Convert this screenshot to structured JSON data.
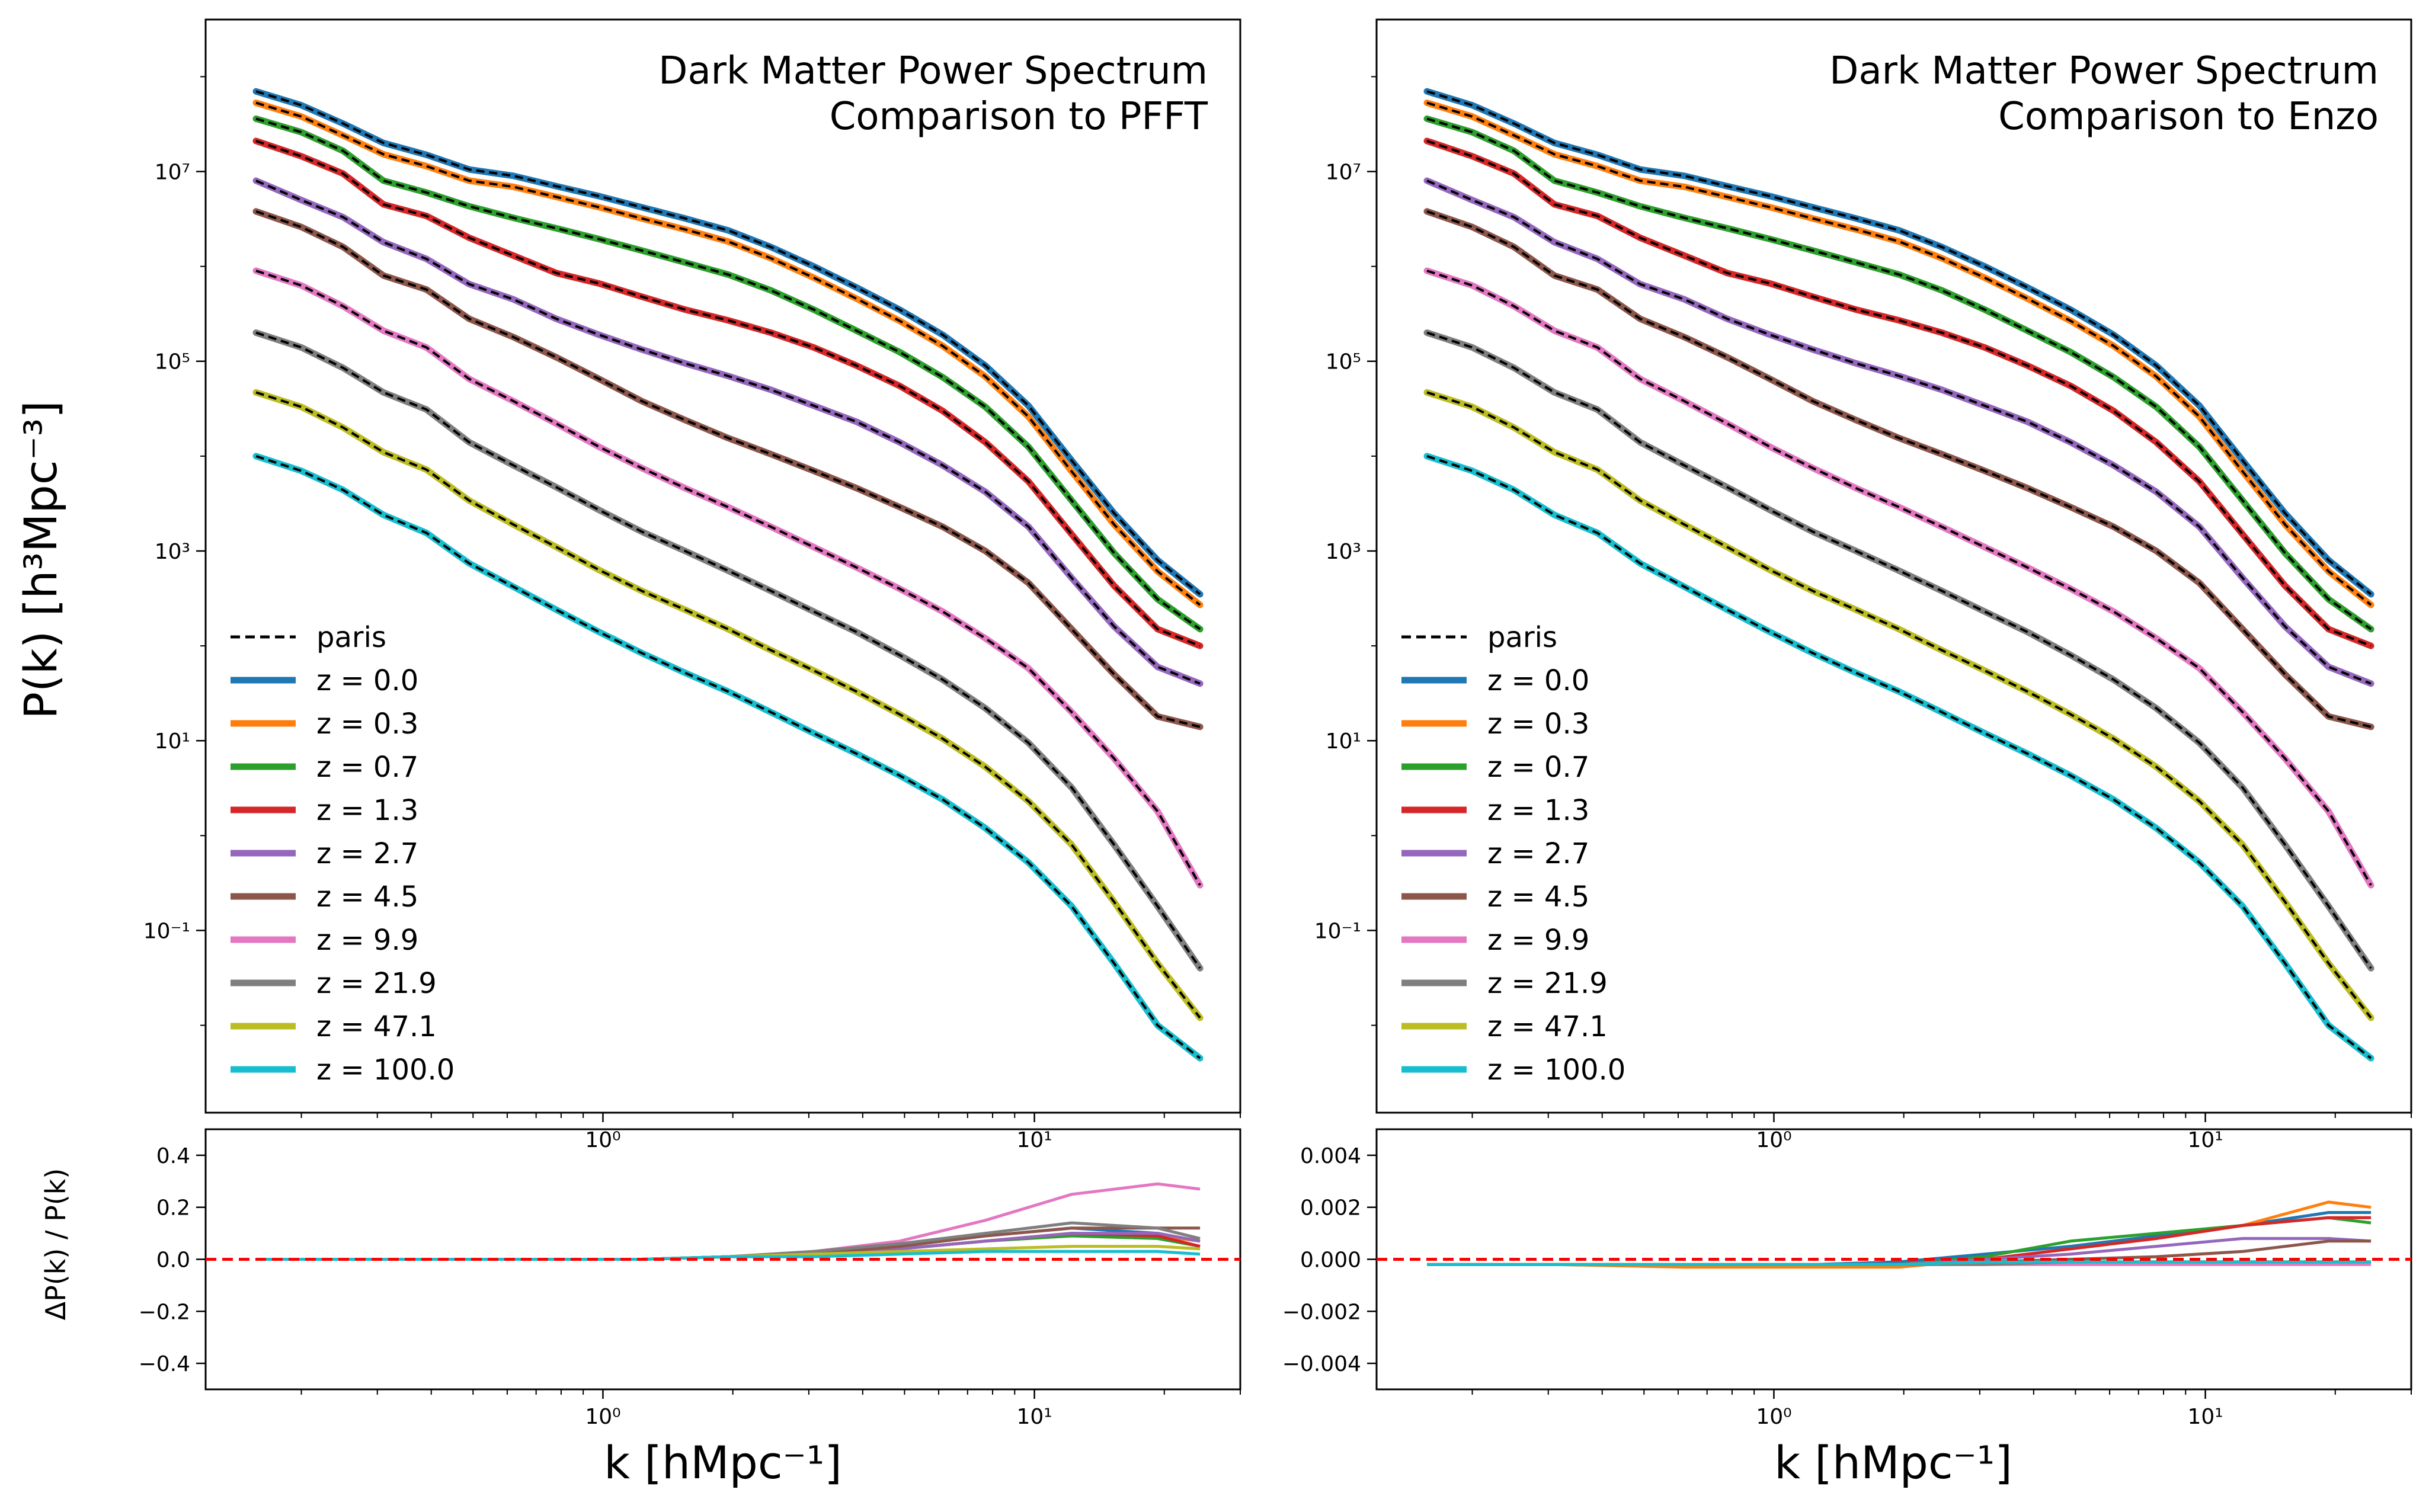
{
  "figure": {
    "ylabel_top": "P(k)   [h³Mpc⁻³]",
    "ylabel_bottom": "ΔP(k) / P(k)",
    "xlabel": "k  [hMpc⁻¹]"
  },
  "chart_data": [
    {
      "type": "line",
      "panel": "top-left",
      "title": "Dark Matter Power Spectrum",
      "subtitle": "Comparison to PFFT",
      "xscale": "log",
      "yscale": "log",
      "xlim": [
        0.12,
        30
      ],
      "ylim": [
        0.0012,
        400000000
      ],
      "ylabel": "P(k)   [h³Mpc⁻³]",
      "yticks": [
        {
          "value": 0.1,
          "label": "10⁻¹"
        },
        {
          "value": 10,
          "label": "10¹"
        },
        {
          "value": 1000,
          "label": "10³"
        },
        {
          "value": 100000,
          "label": "10⁵"
        },
        {
          "value": 10000000,
          "label": "10⁷"
        }
      ],
      "xticks": [
        {
          "value": 1,
          "label": "10⁰"
        },
        {
          "value": 10,
          "label": "10¹"
        }
      ],
      "legend_position": "lower-left",
      "reference": {
        "name": "paris",
        "style": "dashed",
        "color": "#000000"
      },
      "x": [
        0.157,
        0.2,
        0.25,
        0.31,
        0.39,
        0.49,
        0.62,
        0.78,
        0.98,
        1.23,
        1.55,
        1.95,
        2.45,
        3.08,
        3.87,
        4.87,
        6.13,
        7.7,
        9.69,
        12.2,
        15.3,
        19.3,
        24.2
      ],
      "series": [
        {
          "name": "z = 0.0",
          "color": "#1f77b4",
          "values": [
            70000000,
            50000000,
            32000000,
            20000000,
            15000000,
            10500000,
            9000000,
            7000000,
            5500000,
            4200000,
            3200000,
            2400000,
            1600000,
            1000000,
            600000,
            350000,
            190000,
            90000,
            34000,
            9000,
            2500,
            800,
            350
          ]
        },
        {
          "name": "z = 0.3",
          "color": "#ff7f0e",
          "values": [
            53000000,
            38000000,
            24000000,
            15200000,
            11400000,
            8000000,
            6900000,
            5400000,
            4200000,
            3200000,
            2450000,
            1830000,
            1220000,
            760000,
            457000,
            267000,
            145000,
            69000,
            26000,
            6900,
            1900,
            610,
            270
          ]
        },
        {
          "name": "z = 0.7",
          "color": "#2ca02c",
          "values": [
            36000000,
            26000000,
            16500000,
            8000000,
            6000000,
            4300000,
            3250000,
            2520000,
            1940000,
            1470000,
            1100000,
            820000,
            560000,
            350000,
            210000,
            125000,
            68000,
            33000,
            12500,
            3400,
            950,
            310,
            150
          ]
        },
        {
          "name": "z = 1.3",
          "color": "#d62728",
          "values": [
            21000000,
            14500000,
            9500000,
            4500000,
            3400000,
            2000000,
            1300000,
            850000,
            660000,
            480000,
            350000,
            270000,
            200000,
            140000,
            90000,
            55000,
            30000,
            14000,
            5400,
            1500,
            430,
            150,
            100
          ]
        },
        {
          "name": "z = 2.7",
          "color": "#9467bd",
          "values": [
            8000000,
            5000000,
            3300000,
            1800000,
            1200000,
            650000,
            450000,
            280000,
            190000,
            133000,
            95000,
            70000,
            50000,
            34000,
            23000,
            14000,
            8000,
            4200,
            1800,
            520,
            160,
            60,
            40
          ]
        },
        {
          "name": "z = 4.5",
          "color": "#8c564b",
          "values": [
            3800000,
            2600000,
            1600000,
            800000,
            570000,
            280000,
            180000,
            110000,
            65000,
            38000,
            24000,
            15500,
            10500,
            7000,
            4600,
            2900,
            1800,
            1000,
            460,
            150,
            50,
            18,
            14
          ]
        },
        {
          "name": "z = 9.9",
          "color": "#e377c2",
          "values": [
            900000,
            630000,
            380000,
            210000,
            140000,
            65000,
            38000,
            22000,
            12500,
            7500,
            4600,
            2900,
            1800,
            1100,
            670,
            400,
            230,
            120,
            58,
            20,
            6.5,
            1.8,
            0.3
          ]
        },
        {
          "name": "z = 21.9",
          "color": "#7f7f7f",
          "values": [
            200000,
            140000,
            85000,
            47000,
            31000,
            14000,
            8000,
            4700,
            2700,
            1600,
            1000,
            620,
            380,
            230,
            140,
            80,
            44,
            22,
            9.5,
            3.2,
            0.8,
            0.18,
            0.04
          ]
        },
        {
          "name": "z = 47.1",
          "color": "#bcbd22",
          "values": [
            47000,
            33000,
            20000,
            11000,
            7200,
            3400,
            1900,
            1100,
            630,
            380,
            240,
            150,
            90,
            55,
            33,
            19,
            10.5,
            5.3,
            2.3,
            0.8,
            0.2,
            0.045,
            0.012
          ]
        },
        {
          "name": "z = 100.0",
          "color": "#17becf",
          "values": [
            10000,
            7000,
            4400,
            2400,
            1550,
            740,
            420,
            240,
            140,
            84,
            52,
            33,
            20,
            12,
            7.3,
            4.3,
            2.4,
            1.2,
            0.52,
            0.18,
            0.045,
            0.01,
            0.0045
          ]
        }
      ]
    },
    {
      "type": "line",
      "panel": "top-right",
      "title": "Dark Matter Power Spectrum",
      "subtitle": "Comparison to Enzo",
      "xscale": "log",
      "yscale": "log",
      "xlim": [
        0.12,
        30
      ],
      "ylim": [
        0.0012,
        400000000
      ],
      "yticks": [
        {
          "value": 0.1,
          "label": "10⁻¹"
        },
        {
          "value": 10,
          "label": "10¹"
        },
        {
          "value": 1000,
          "label": "10³"
        },
        {
          "value": 100000,
          "label": "10⁵"
        },
        {
          "value": 10000000,
          "label": "10⁷"
        }
      ],
      "xticks": [
        {
          "value": 1,
          "label": "10⁰"
        },
        {
          "value": 10,
          "label": "10¹"
        }
      ],
      "legend_position": "lower-left",
      "reference": {
        "name": "paris",
        "style": "dashed",
        "color": "#000000"
      },
      "note": "same series as left panel",
      "series_names": [
        "z = 0.0",
        "z = 0.3",
        "z = 0.7",
        "z = 1.3",
        "z = 2.7",
        "z = 4.5",
        "z = 9.9",
        "z = 21.9",
        "z = 47.1",
        "z = 100.0"
      ]
    },
    {
      "type": "line",
      "panel": "bottom-left",
      "xscale": "log",
      "xlim": [
        0.12,
        30
      ],
      "ylim": [
        -0.5,
        0.5
      ],
      "ylabel": "ΔP(k) / P(k)",
      "xlabel": "k  [hMpc⁻¹]",
      "yticks": [
        {
          "value": 0.4,
          "label": "0.4"
        },
        {
          "value": 0.2,
          "label": "0.2"
        },
        {
          "value": 0.0,
          "label": "0.0"
        },
        {
          "value": -0.2,
          "label": "−0.2"
        },
        {
          "value": -0.4,
          "label": "−0.4"
        }
      ],
      "xticks": [
        {
          "value": 1,
          "label": "10⁰"
        },
        {
          "value": 10,
          "label": "10¹"
        }
      ],
      "zero_line": {
        "y": 0,
        "color": "#ff0000",
        "style": "dashed"
      },
      "x": [
        0.157,
        0.31,
        0.62,
        1.23,
        1.95,
        3.08,
        4.87,
        7.7,
        12.2,
        19.3,
        24.2
      ],
      "series": [
        {
          "name": "z = 0.0",
          "color": "#1f77b4",
          "values": [
            0,
            0,
            0,
            0,
            0.01,
            0.02,
            0.05,
            0.09,
            0.12,
            0.1,
            0.07
          ]
        },
        {
          "name": "z = 0.3",
          "color": "#ff7f0e",
          "values": [
            0,
            0,
            0,
            0,
            0.01,
            0.02,
            0.04,
            0.07,
            0.1,
            0.09,
            0.07
          ]
        },
        {
          "name": "z = 0.7",
          "color": "#2ca02c",
          "values": [
            0,
            0,
            0,
            0,
            0.01,
            0.02,
            0.04,
            0.07,
            0.09,
            0.08,
            0.05
          ]
        },
        {
          "name": "z = 1.3",
          "color": "#d62728",
          "values": [
            0,
            0,
            0,
            0,
            0.01,
            0.02,
            0.04,
            0.07,
            0.1,
            0.09,
            0.05
          ]
        },
        {
          "name": "z = 2.7",
          "color": "#9467bd",
          "values": [
            0,
            0,
            0,
            0,
            0.01,
            0.02,
            0.04,
            0.07,
            0.1,
            0.1,
            0.07
          ]
        },
        {
          "name": "z = 4.5",
          "color": "#8c564b",
          "values": [
            0,
            0,
            0,
            0,
            0.01,
            0.02,
            0.05,
            0.09,
            0.12,
            0.12,
            0.12
          ]
        },
        {
          "name": "z = 9.9",
          "color": "#e377c2",
          "values": [
            0,
            0,
            0,
            0,
            0.01,
            0.03,
            0.07,
            0.15,
            0.25,
            0.29,
            0.27
          ]
        },
        {
          "name": "z = 21.9",
          "color": "#7f7f7f",
          "values": [
            0,
            0,
            0,
            0,
            0.01,
            0.03,
            0.06,
            0.1,
            0.14,
            0.12,
            0.08
          ]
        },
        {
          "name": "z = 47.1",
          "color": "#bcbd22",
          "values": [
            0,
            0,
            0,
            0,
            0.01,
            0.02,
            0.03,
            0.04,
            0.05,
            0.05,
            0.04
          ]
        },
        {
          "name": "z = 100.0",
          "color": "#17becf",
          "values": [
            0,
            0,
            0,
            0,
            0.01,
            0.01,
            0.02,
            0.03,
            0.03,
            0.03,
            0.02
          ]
        }
      ]
    },
    {
      "type": "line",
      "panel": "bottom-right",
      "xscale": "log",
      "xlim": [
        0.12,
        30
      ],
      "ylim": [
        -0.005,
        0.005
      ],
      "xlabel": "k  [hMpc⁻¹]",
      "yticks": [
        {
          "value": 0.004,
          "label": "0.004"
        },
        {
          "value": 0.002,
          "label": "0.002"
        },
        {
          "value": 0.0,
          "label": "0.000"
        },
        {
          "value": -0.002,
          "label": "−0.002"
        },
        {
          "value": -0.004,
          "label": "−0.004"
        }
      ],
      "xticks": [
        {
          "value": 1,
          "label": "10⁰"
        },
        {
          "value": 10,
          "label": "10¹"
        }
      ],
      "zero_line": {
        "y": 0,
        "color": "#ff0000",
        "style": "dashed"
      },
      "x": [
        0.157,
        0.31,
        0.62,
        1.23,
        1.95,
        3.08,
        4.87,
        7.7,
        12.2,
        19.3,
        24.2
      ],
      "series": [
        {
          "name": "z = 0.0",
          "color": "#1f77b4",
          "values": [
            -0.0002,
            -0.0002,
            -0.0002,
            -0.0002,
            -0.0001,
            0.0002,
            0.0005,
            0.0009,
            0.0013,
            0.0018,
            0.0018
          ]
        },
        {
          "name": "z = 0.3",
          "color": "#ff7f0e",
          "values": [
            -0.0002,
            -0.0002,
            -0.0003,
            -0.0003,
            -0.0003,
            0.0,
            0.0004,
            0.0008,
            0.0013,
            0.0022,
            0.002
          ]
        },
        {
          "name": "z = 0.7",
          "color": "#2ca02c",
          "values": [
            -0.0002,
            -0.0002,
            -0.0002,
            -0.0002,
            -0.0002,
            0.0001,
            0.0007,
            0.001,
            0.0013,
            0.0016,
            0.0014
          ]
        },
        {
          "name": "z = 1.3",
          "color": "#d62728",
          "values": [
            -0.0002,
            -0.0002,
            -0.0002,
            -0.0002,
            -0.0002,
            0.0,
            0.0004,
            0.0008,
            0.0013,
            0.0016,
            0.0016
          ]
        },
        {
          "name": "z = 2.7",
          "color": "#9467bd",
          "values": [
            -0.0002,
            -0.0002,
            -0.0002,
            -0.0002,
            -0.0002,
            0.0,
            0.0002,
            0.0005,
            0.0008,
            0.0008,
            0.0007
          ]
        },
        {
          "name": "z = 4.5",
          "color": "#8c564b",
          "values": [
            -0.0002,
            -0.0002,
            -0.0002,
            -0.0002,
            -0.0002,
            -0.0001,
            0.0,
            0.0001,
            0.0003,
            0.0007,
            0.0007
          ]
        },
        {
          "name": "z = 9.9",
          "color": "#e377c2",
          "values": [
            -0.0002,
            -0.0002,
            -0.0002,
            -0.0002,
            -0.0002,
            -0.0002,
            -0.0002,
            -0.0002,
            -0.0002,
            -0.0002,
            -0.0002
          ]
        },
        {
          "name": "z = 21.9",
          "color": "#7f7f7f",
          "values": [
            -0.0002,
            -0.0002,
            -0.0002,
            -0.0002,
            -0.0002,
            -0.0002,
            -0.0001,
            -0.0001,
            -0.0001,
            -0.0001,
            -0.0001
          ]
        },
        {
          "name": "z = 47.1",
          "color": "#bcbd22",
          "values": [
            -0.0002,
            -0.0002,
            -0.0002,
            -0.0002,
            -0.0002,
            -0.0001,
            -0.0001,
            -0.0001,
            -0.0001,
            -0.0001,
            -0.0001
          ]
        },
        {
          "name": "z = 100.0",
          "color": "#17becf",
          "values": [
            -0.0002,
            -0.0002,
            -0.0002,
            -0.0002,
            -0.0002,
            -0.0001,
            -0.0001,
            -0.0001,
            -0.0001,
            -0.0001,
            -0.0001
          ]
        }
      ]
    }
  ]
}
